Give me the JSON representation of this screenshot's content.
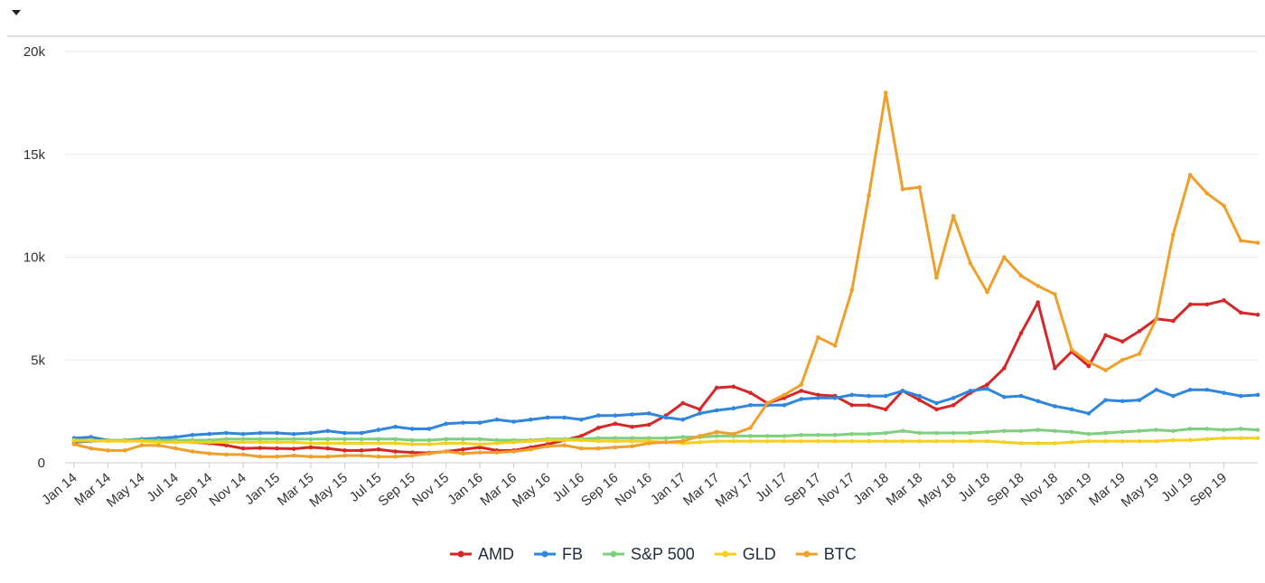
{
  "colors": {
    "AMD": "#d62728",
    "FB": "#2e86de",
    "S&P 500": "#7ed07e",
    "GLD": "#f7d01f",
    "BTC": "#f0a02a"
  },
  "chart_data": {
    "type": "line",
    "ylim": [
      0,
      20000
    ],
    "yticks": [
      0,
      5000,
      10000,
      15000,
      20000
    ],
    "ytick_labels": [
      "0",
      "5k",
      "10k",
      "15k",
      "20k"
    ],
    "xtick_labels": [
      "Jan 14",
      "Mar 14",
      "May 14",
      "Jul 14",
      "Sep 14",
      "Nov 14",
      "Jan 15",
      "Mar 15",
      "May 15",
      "Jul 15",
      "Sep 15",
      "Nov 15",
      "Jan 16",
      "Mar 16",
      "May 16",
      "Jul 16",
      "Sep 16",
      "Nov 16",
      "Jan 17",
      "Mar 17",
      "May 17",
      "Jul 17",
      "Sep 17",
      "Nov 17",
      "Jan 18",
      "Mar 18",
      "May 18",
      "Jul 18",
      "Sep 18",
      "Nov 18",
      "Jan 19",
      "Mar 19",
      "May 19",
      "Jul 19",
      "Sep 19"
    ],
    "grid": true,
    "legend_position": "bottom-center",
    "series": [
      {
        "name": "AMD",
        "values": [
          1000,
          1050,
          1100,
          1100,
          1150,
          1100,
          1050,
          1000,
          950,
          850,
          700,
          720,
          700,
          680,
          750,
          700,
          600,
          600,
          650,
          550,
          500,
          480,
          550,
          650,
          750,
          600,
          600,
          750,
          900,
          1100,
          1300,
          1700,
          1900,
          1750,
          1850,
          2300,
          2900,
          2600,
          3650,
          3700,
          3400,
          2900,
          3150,
          3500,
          3300,
          3250,
          2800,
          2800,
          2600,
          3500,
          3050,
          2600,
          2800,
          3400,
          3800,
          4600,
          6300,
          7800,
          4600,
          5400,
          4700,
          6200,
          5900,
          6400,
          7000,
          6900,
          7700,
          7700,
          7900,
          7300,
          7200
        ]
      },
      {
        "name": "FB",
        "values": [
          1200,
          1250,
          1100,
          1100,
          1150,
          1200,
          1250,
          1350,
          1400,
          1450,
          1400,
          1450,
          1450,
          1400,
          1450,
          1550,
          1450,
          1450,
          1600,
          1750,
          1650,
          1650,
          1900,
          1950,
          1950,
          2100,
          2000,
          2100,
          2200,
          2200,
          2100,
          2300,
          2300,
          2350,
          2400,
          2200,
          2100,
          2400,
          2550,
          2650,
          2800,
          2800,
          2800,
          3100,
          3150,
          3150,
          3300,
          3250,
          3250,
          3500,
          3250,
          2900,
          3150,
          3500,
          3600,
          3200,
          3250,
          3000,
          2750,
          2600,
          2400,
          3050,
          3000,
          3050,
          3550,
          3250,
          3550,
          3550,
          3400,
          3250,
          3300
        ]
      },
      {
        "name": "S&P 500",
        "values": [
          1050,
          1050,
          1100,
          1100,
          1100,
          1100,
          1100,
          1100,
          1100,
          1150,
          1150,
          1150,
          1150,
          1150,
          1150,
          1150,
          1150,
          1150,
          1150,
          1150,
          1100,
          1100,
          1150,
          1150,
          1150,
          1100,
          1100,
          1100,
          1150,
          1150,
          1150,
          1200,
          1200,
          1200,
          1200,
          1200,
          1250,
          1250,
          1300,
          1300,
          1300,
          1300,
          1300,
          1350,
          1350,
          1350,
          1400,
          1400,
          1450,
          1550,
          1450,
          1450,
          1450,
          1450,
          1500,
          1550,
          1550,
          1600,
          1550,
          1500,
          1400,
          1450,
          1500,
          1550,
          1600,
          1550,
          1650,
          1650,
          1600,
          1650,
          1600
        ]
      },
      {
        "name": "GLD",
        "values": [
          1100,
          1100,
          1050,
          1050,
          1050,
          1000,
          1000,
          1000,
          1000,
          1000,
          1000,
          1000,
          1000,
          1000,
          950,
          950,
          950,
          950,
          950,
          950,
          900,
          900,
          950,
          950,
          900,
          950,
          1000,
          1050,
          1100,
          1100,
          1100,
          1050,
          1050,
          1050,
          1050,
          1000,
          950,
          1000,
          1050,
          1050,
          1050,
          1050,
          1050,
          1050,
          1050,
          1050,
          1050,
          1050,
          1050,
          1050,
          1050,
          1050,
          1050,
          1050,
          1050,
          1000,
          950,
          950,
          950,
          1000,
          1050,
          1050,
          1050,
          1050,
          1050,
          1100,
          1100,
          1150,
          1200,
          1200,
          1200
        ]
      },
      {
        "name": "BTC",
        "values": [
          900,
          700,
          600,
          600,
          850,
          850,
          700,
          550,
          450,
          400,
          400,
          300,
          300,
          350,
          300,
          300,
          350,
          350,
          300,
          300,
          350,
          450,
          550,
          450,
          500,
          500,
          550,
          650,
          800,
          850,
          700,
          700,
          750,
          800,
          950,
          1000,
          1050,
          1300,
          1500,
          1400,
          1700,
          2900,
          3300,
          3800,
          6100,
          5700,
          8400,
          13000,
          18000,
          13300,
          13400,
          9000,
          12000,
          9700,
          8300,
          10000,
          9100,
          8600,
          8200,
          5500,
          4900,
          4500,
          5000,
          5300,
          7000,
          11100,
          14000,
          13100,
          12500,
          10800,
          10700
        ]
      }
    ]
  }
}
